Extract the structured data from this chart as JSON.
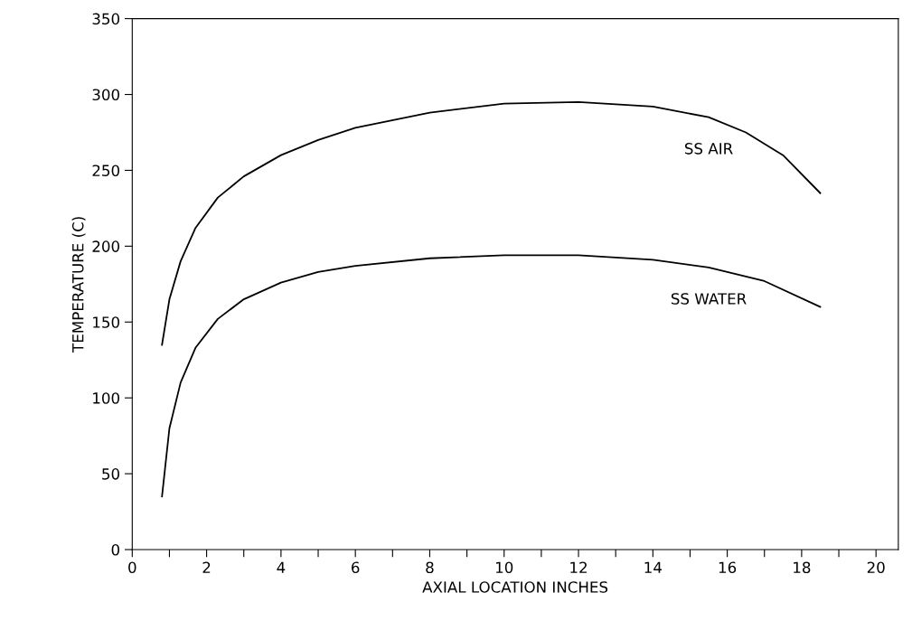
{
  "chart_data": {
    "type": "line",
    "xlabel": "AXIAL LOCATION INCHES",
    "ylabel": "TEMPERATURE (C)",
    "series": [
      {
        "name": "SS AIR",
        "color": "#000000",
        "x": [
          0.8,
          1.0,
          1.3,
          1.7,
          2.3,
          3,
          4,
          5,
          6,
          8,
          10,
          12,
          14,
          15.5,
          16.5,
          17.5,
          18.5
        ],
        "values": [
          135,
          165,
          190,
          212,
          232,
          246,
          260,
          270,
          278,
          288,
          294,
          295,
          292,
          285,
          275,
          260,
          235
        ]
      },
      {
        "name": "SS WATER",
        "color": "#000000",
        "x": [
          0.8,
          1.0,
          1.3,
          1.7,
          2.3,
          3,
          4,
          5,
          6,
          8,
          10,
          12,
          14,
          15.5,
          17,
          18.5
        ],
        "values": [
          35,
          80,
          110,
          133,
          152,
          165,
          176,
          183,
          187,
          192,
          194,
          194,
          191,
          186,
          177,
          160
        ]
      }
    ],
    "xlim": [
      0,
      20.6
    ],
    "ylim": [
      0,
      350
    ],
    "xticks": [
      0,
      {
        "value": 1,
        "label": null
      },
      2,
      {
        "value": 3,
        "label": null
      },
      4,
      {
        "value": 5,
        "label": null
      },
      6,
      {
        "value": 7,
        "label": null
      },
      8,
      {
        "value": 9,
        "label": null
      },
      10,
      {
        "value": 11,
        "label": null
      },
      12,
      {
        "value": 13,
        "label": null
      },
      14,
      {
        "value": 15,
        "label": null
      },
      16,
      {
        "value": 17,
        "label": null
      },
      18,
      {
        "value": 19,
        "label": null
      },
      20
    ],
    "yticks": [
      0,
      50,
      100,
      150,
      200,
      250,
      300,
      350
    ],
    "grid": false,
    "marker": "none",
    "line_style": "solid"
  }
}
